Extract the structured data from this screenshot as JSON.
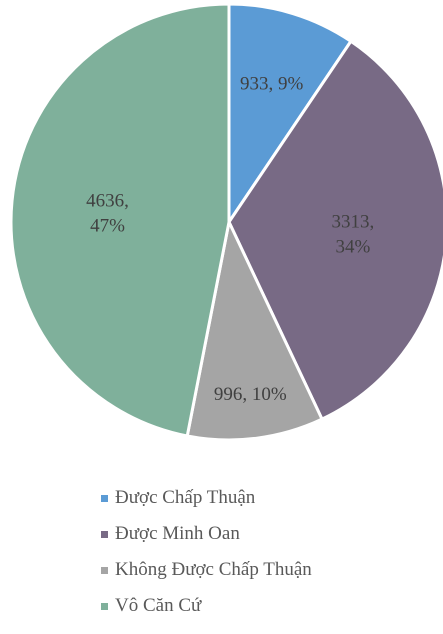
{
  "chart_data": {
    "type": "pie",
    "title": "",
    "slices": [
      {
        "label": "Được Chấp Thuận",
        "value": 933,
        "percent": "9%",
        "color": "#5b9bd5"
      },
      {
        "label": "Được Minh Oan",
        "value": 3313,
        "percent": "34%",
        "color": "#786a85"
      },
      {
        "label": "Không Được Chấp Thuận",
        "value": 996,
        "percent": "10%",
        "color": "#a5a5a5"
      },
      {
        "label": "Vô Căn Cứ",
        "value": 4636,
        "percent": "47%",
        "color": "#7fb09b"
      }
    ],
    "legend_position": "bottom",
    "data_label_color": "#404040",
    "border_color": "#ffffff"
  }
}
